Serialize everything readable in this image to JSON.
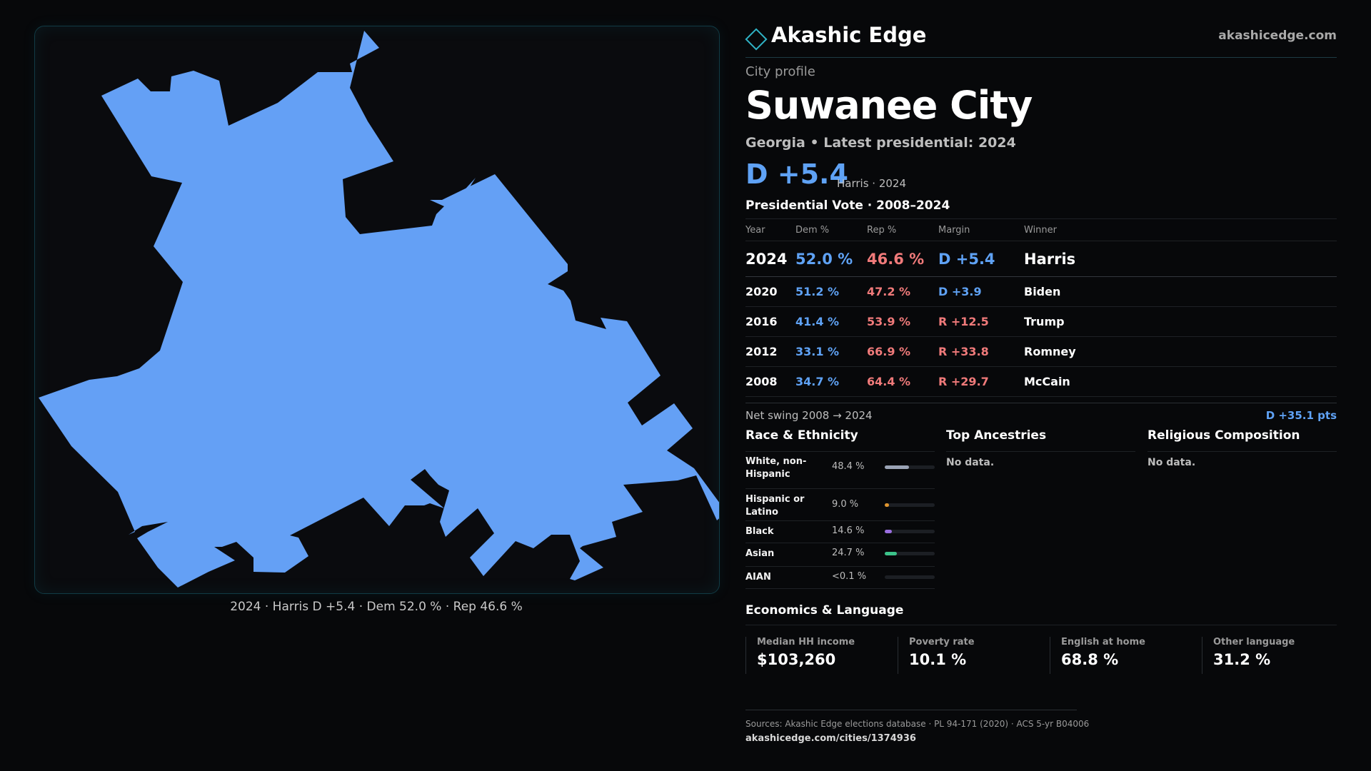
{
  "map": {
    "fill_color": "#64a0f5",
    "caption": "2024 · Harris D +5.4 · Dem 52.0 % · Rep 46.6 %"
  },
  "brand": {
    "name": "Akashic Edge",
    "url": "akashicedge.com",
    "accent": "#2fb3c6"
  },
  "profile": {
    "kicker": "City profile",
    "city": "Suwanee City",
    "subtitle": "Georgia • Latest presidential: 2024",
    "headline_margin": "D +5.4",
    "headline_note": "Harris · 2024"
  },
  "votes": {
    "title": "Presidential Vote · 2008–2024",
    "headers": {
      "year": "Year",
      "dem": "Dem %",
      "rep": "Rep %",
      "margin": "Margin",
      "winner": "Winner"
    },
    "rows": [
      {
        "year": "2024",
        "dem": "52.0 %",
        "rep": "46.6 %",
        "margin": "D +5.4",
        "party": "d",
        "winner": "Harris"
      },
      {
        "year": "2020",
        "dem": "51.2 %",
        "rep": "47.2 %",
        "margin": "D +3.9",
        "party": "d",
        "winner": "Biden"
      },
      {
        "year": "2016",
        "dem": "41.4 %",
        "rep": "53.9 %",
        "margin": "R +12.5",
        "party": "r",
        "winner": "Trump"
      },
      {
        "year": "2012",
        "dem": "33.1 %",
        "rep": "66.9 %",
        "margin": "R +33.8",
        "party": "r",
        "winner": "Romney"
      },
      {
        "year": "2008",
        "dem": "34.7 %",
        "rep": "64.4 %",
        "margin": "R +29.7",
        "party": "r",
        "winner": "McCain"
      }
    ],
    "swing_label": "Net swing 2008 → 2024",
    "swing_value": "D +35.1 pts"
  },
  "race": {
    "title": "Race & Ethnicity",
    "rows": [
      {
        "name": "White, non-Hispanic",
        "pct": "48.4 %",
        "share": 0.484,
        "color": "#9aa3b5"
      },
      {
        "name": "Hispanic or Latino",
        "pct": "9.0 %",
        "share": 0.09,
        "color": "#e0962f"
      },
      {
        "name": "Black",
        "pct": "14.6 %",
        "share": 0.146,
        "color": "#9a6ee0"
      },
      {
        "name": "Asian",
        "pct": "24.7 %",
        "share": 0.247,
        "color": "#3cc38a"
      },
      {
        "name": "AIAN",
        "pct": "<0.1 %",
        "share": 0.0,
        "color": "#9aa3b5"
      }
    ]
  },
  "ancestries": {
    "title": "Top Ancestries",
    "empty": "No data."
  },
  "religion": {
    "title": "Religious Composition",
    "empty": "No data."
  },
  "economics": {
    "title": "Economics & Language",
    "stats": [
      {
        "label": "Median HH income",
        "value": "$103,260"
      },
      {
        "label": "Poverty rate",
        "value": "10.1 %"
      },
      {
        "label": "English at home",
        "value": "68.8 %"
      },
      {
        "label": "Other language",
        "value": "31.2 %"
      }
    ]
  },
  "sources": {
    "line": "Sources: Akashic Edge elections database · PL 94-171 (2020) · ACS 5-yr B04006",
    "url": "akashicedge.com/cities/1374936"
  }
}
